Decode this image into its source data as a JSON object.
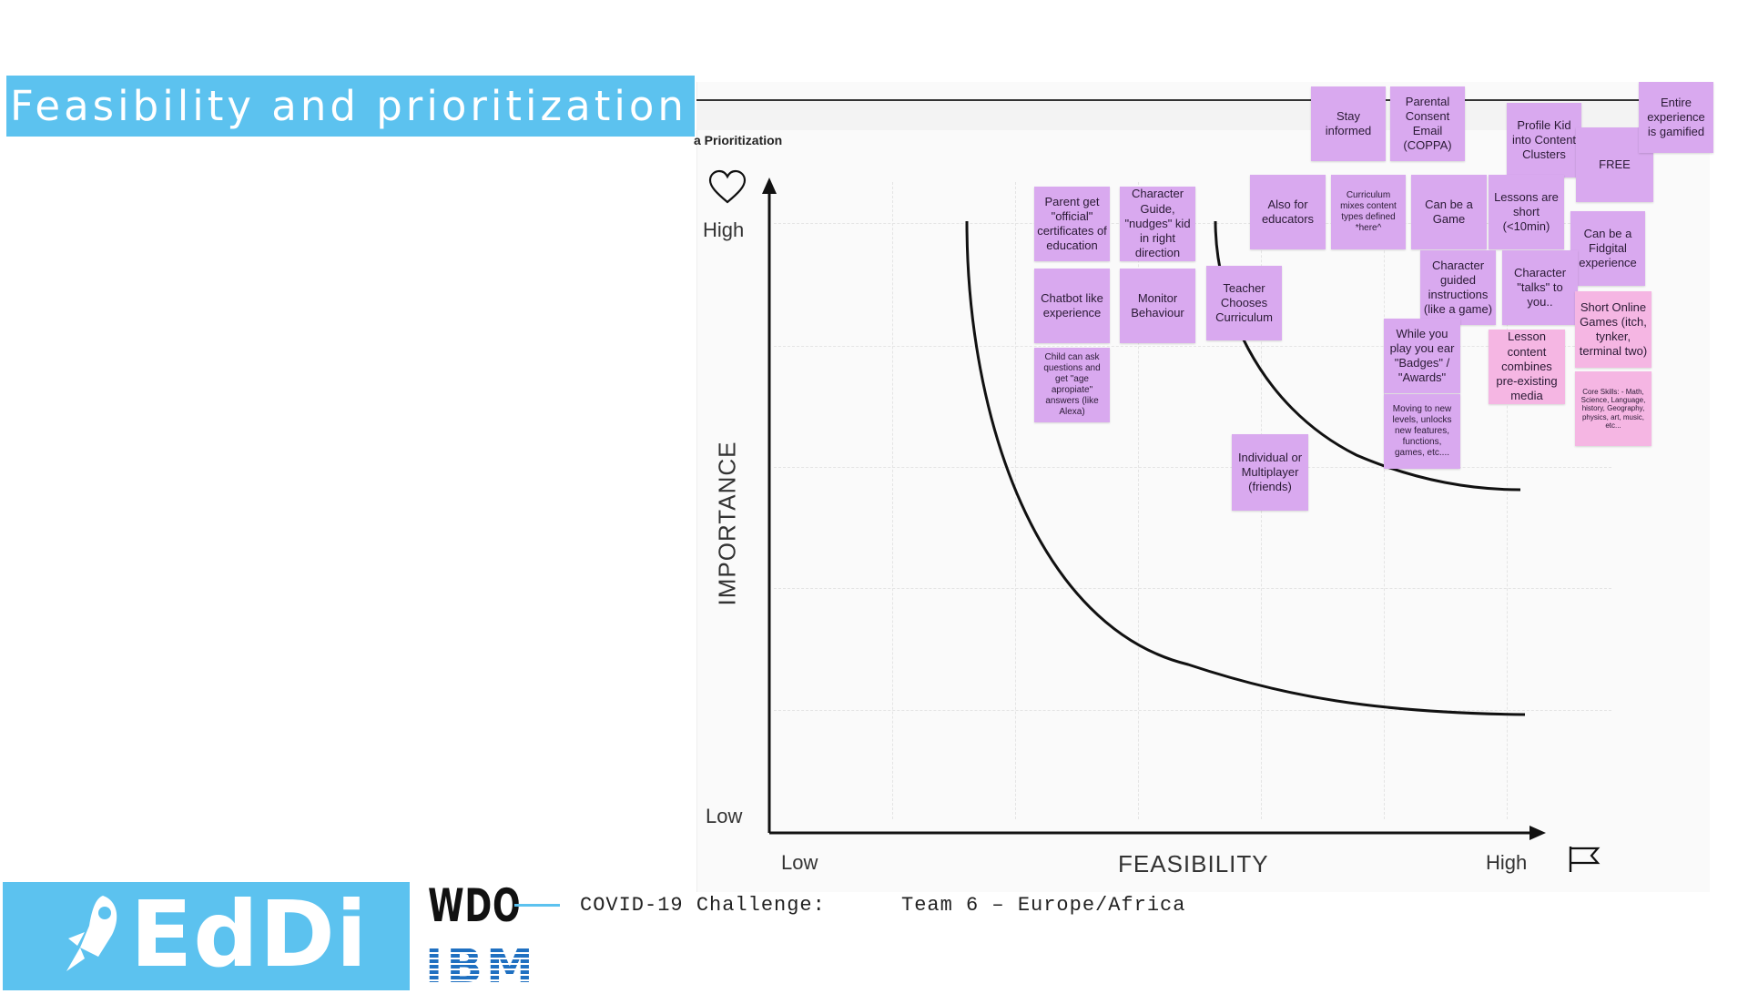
{
  "title": "Feasibility and prioritization",
  "board": {
    "label": "a Prioritization",
    "y_axis": {
      "label": "IMPORTANCE",
      "high": "High",
      "low": "Low"
    },
    "x_axis": {
      "label": "FEASIBILITY",
      "low": "Low",
      "high": "High"
    },
    "icons": {
      "y_axis": "heart-icon",
      "x_axis": "flag-icon"
    }
  },
  "notes": [
    {
      "id": "stay-informed",
      "text": "Stay informed",
      "color": "#d9a9ef"
    },
    {
      "id": "parental-consent",
      "text": "Parental Consent Email (COPPA)",
      "color": "#d9a9ef"
    },
    {
      "id": "profile-kid",
      "text": "Profile Kid into Content Clusters",
      "color": "#d9a9ef"
    },
    {
      "id": "free",
      "text": "FREE",
      "color": "#d9a9ef"
    },
    {
      "id": "entire-experience",
      "text": "Entire experience is gamified",
      "color": "#d9a9ef"
    },
    {
      "id": "parent-certificates",
      "text": "Parent get \"official\" certificates of education",
      "color": "#d9a9ef"
    },
    {
      "id": "character-guide",
      "text": "Character Guide, \"nudges\" kid in right direction",
      "color": "#d9a9ef"
    },
    {
      "id": "also-for-educators",
      "text": "Also for educators",
      "color": "#d9a9ef"
    },
    {
      "id": "curriculum-mixes",
      "text": "Curriculum mixes content types defined *here^",
      "color": "#d9a9ef"
    },
    {
      "id": "can-be-game",
      "text": "Can be a Game",
      "color": "#d9a9ef"
    },
    {
      "id": "lessons-short",
      "text": "Lessons are short (<10min)",
      "color": "#d9a9ef"
    },
    {
      "id": "fidgital",
      "text": "Can be a Fidgital experience",
      "color": "#d9a9ef"
    },
    {
      "id": "chatbot",
      "text": "Chatbot like experience",
      "color": "#d9a9ef"
    },
    {
      "id": "monitor-behaviour",
      "text": "Monitor Behaviour",
      "color": "#d9a9ef"
    },
    {
      "id": "teacher-chooses",
      "text": "Teacher Chooses Curriculum",
      "color": "#d9a9ef"
    },
    {
      "id": "character-guided",
      "text": "Character guided instructions (like a game)",
      "color": "#d9a9ef"
    },
    {
      "id": "character-talks",
      "text": "Character \"talks\" to you..",
      "color": "#d9a9ef"
    },
    {
      "id": "short-online-games",
      "text": "Short Online Games (itch, tynker, terminal two)",
      "color": "#f5b6e3"
    },
    {
      "id": "child-can-ask",
      "text": "Child can ask questions and get \"age apropiate\" answers (like Alexa)",
      "color": "#d9a9ef"
    },
    {
      "id": "badges",
      "text": "While you play you ear \"Badges\" / \"Awards\"",
      "color": "#d9a9ef"
    },
    {
      "id": "lesson-content",
      "text": "Lesson content combines pre-existing media",
      "color": "#f5b6e3"
    },
    {
      "id": "core-skills",
      "text": "Core Skills: - Math, Science, Language, history, Geography, physics, art, music, etc...",
      "color": "#f5b6e3"
    },
    {
      "id": "new-levels",
      "text": "Moving to new levels, unlocks new features, functions, games, etc....",
      "color": "#d9a9ef"
    },
    {
      "id": "multiplayer",
      "text": "Individual or Multiplayer (friends)",
      "color": "#d9a9ef"
    }
  ],
  "footer": {
    "brand": "EdDi",
    "wdo": "WDO",
    "ibm": "IBM",
    "challenge": "COVID-19 Challenge:",
    "team": "Team 6 – Europe/Africa",
    "brand_color": "#5cc2ef"
  }
}
